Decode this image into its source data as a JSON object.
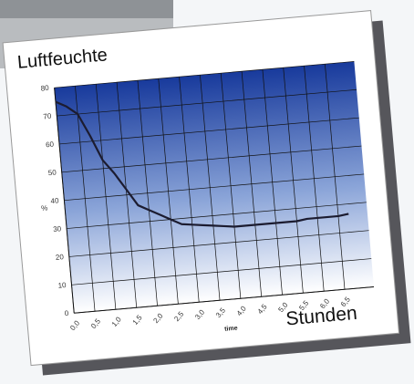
{
  "chart_data": {
    "type": "line",
    "title": "Luftfeuchte",
    "x_label": "time",
    "y_label": "%",
    "annotation": "Stunden",
    "x": [
      0,
      0.25,
      0.5,
      0.75,
      1.0,
      1.25,
      1.5,
      1.75,
      2.0,
      2.25,
      2.5,
      2.75,
      3.0,
      3.25,
      3.5,
      3.75,
      4.0,
      4.25,
      4.5,
      4.75,
      5.0,
      5.25,
      5.5,
      5.75,
      6.0,
      6.25,
      6.5,
      6.75
    ],
    "series": [
      {
        "color": "#1c1c30",
        "values": [
          75,
          73,
          70,
          62,
          53,
          48,
          42,
          36,
          34,
          32,
          30,
          28,
          27.5,
          27,
          26.5,
          26,
          25.5,
          25.5,
          25.5,
          25.5,
          25.5,
          25.5,
          25.5,
          26,
          26,
          26,
          26,
          26.5
        ]
      }
    ],
    "xlim": [
      0,
      7.2
    ],
    "ylim": [
      0,
      80
    ],
    "xticks": [
      {
        "value": 0,
        "label": "0,0"
      },
      {
        "value": 0.5,
        "label": "0,5"
      },
      {
        "value": 1,
        "label": "1,0"
      },
      {
        "value": 1.5,
        "label": "1,5"
      },
      {
        "value": 2,
        "label": "2,0"
      },
      {
        "value": 2.5,
        "label": "2,5"
      },
      {
        "value": 3,
        "label": "3,0"
      },
      {
        "value": 3.5,
        "label": "3,5"
      },
      {
        "value": 4,
        "label": "4,0"
      },
      {
        "value": 4.5,
        "label": "4,5"
      },
      {
        "value": 5,
        "label": "5,0"
      },
      {
        "value": 5.5,
        "label": "5,5"
      },
      {
        "value": 6,
        "label": "6,0"
      },
      {
        "value": 6.5,
        "label": "6,5"
      }
    ],
    "yticks": [
      0,
      10,
      20,
      30,
      40,
      50,
      60,
      70,
      80
    ],
    "grid": true
  }
}
